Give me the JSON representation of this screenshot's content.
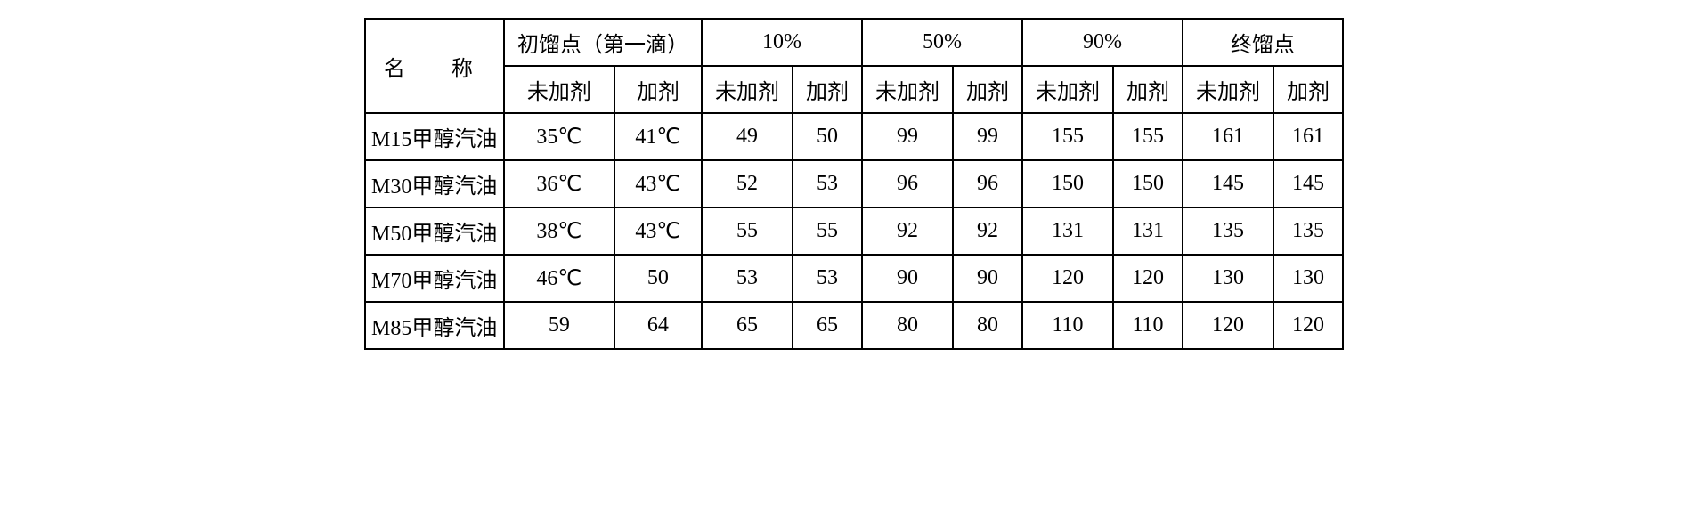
{
  "table": {
    "border_color": "#000000",
    "background_color": "#ffffff",
    "text_color": "#000000",
    "font_family": "SimSun, STSong, serif",
    "cell_fontsize": 24,
    "header": {
      "name_label": "名　称",
      "groups": [
        "初馏点（第一滴）",
        "10%",
        "50%",
        "90%",
        "终馏点"
      ],
      "sub_without": "未加剂",
      "sub_with": "加剂"
    },
    "rows": [
      {
        "label": "M15甲醇汽油",
        "ibp": {
          "without": "35℃",
          "with": "41℃"
        },
        "p10": {
          "without": "49",
          "with": "50"
        },
        "p50": {
          "without": "99",
          "with": "99"
        },
        "p90": {
          "without": "155",
          "with": "155"
        },
        "fbp": {
          "without": "161",
          "with": "161"
        }
      },
      {
        "label": "M30甲醇汽油",
        "ibp": {
          "without": "36℃",
          "with": "43℃"
        },
        "p10": {
          "without": "52",
          "with": "53"
        },
        "p50": {
          "without": "96",
          "with": "96"
        },
        "p90": {
          "without": "150",
          "with": "150"
        },
        "fbp": {
          "without": "145",
          "with": "145"
        }
      },
      {
        "label": "M50甲醇汽油",
        "ibp": {
          "without": "38℃",
          "with": "43℃"
        },
        "p10": {
          "without": "55",
          "with": "55"
        },
        "p50": {
          "without": "92",
          "with": "92"
        },
        "p90": {
          "without": "131",
          "with": "131"
        },
        "fbp": {
          "without": "135",
          "with": "135"
        }
      },
      {
        "label": "M70甲醇汽油",
        "ibp": {
          "without": "46℃",
          "with": "50"
        },
        "p10": {
          "without": "53",
          "with": "53"
        },
        "p50": {
          "without": "90",
          "with": "90"
        },
        "p90": {
          "without": "120",
          "with": "120"
        },
        "fbp": {
          "without": "130",
          "with": "130"
        }
      },
      {
        "label": "M85甲醇汽油",
        "ibp": {
          "without": "59",
          "with": "64"
        },
        "p10": {
          "without": "65",
          "with": "65"
        },
        "p50": {
          "without": "80",
          "with": "80"
        },
        "p90": {
          "without": "110",
          "with": "110"
        },
        "fbp": {
          "without": "120",
          "with": "120"
        }
      }
    ]
  }
}
